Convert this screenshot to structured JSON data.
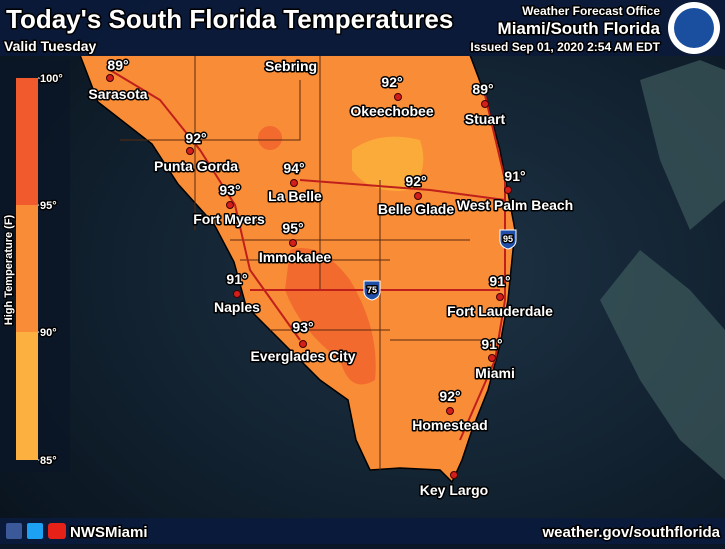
{
  "header": {
    "title": "Today's South Florida Temperatures",
    "valid": "Valid Tuesday",
    "office": "Weather Forecast Office",
    "region": "Miami/South Florida",
    "issued": "Issued Sep 01, 2020 2:54 AM EDT"
  },
  "legend": {
    "title": "High Temperature (F)",
    "ticks": [
      "100°",
      "95°",
      "90°",
      "85°"
    ]
  },
  "cities": [
    {
      "name": "Sarasota",
      "temp": "89°"
    },
    {
      "name": "Sebring"
    },
    {
      "name": "Okeechobee",
      "temp": "92°"
    },
    {
      "name": "Stuart",
      "temp": "89°"
    },
    {
      "name": "Punta Gorda",
      "temp": "92°"
    },
    {
      "name": "La Belle",
      "temp": "94°"
    },
    {
      "name": "Belle Glade",
      "temp": "92°"
    },
    {
      "name": "West Palm Beach",
      "temp": "91°"
    },
    {
      "name": "Fort Myers",
      "temp": "93°"
    },
    {
      "name": "Immokalee",
      "temp": "95°"
    },
    {
      "name": "Naples",
      "temp": "91°"
    },
    {
      "name": "Fort Lauderdale",
      "temp": "91°"
    },
    {
      "name": "Everglades City",
      "temp": "93°"
    },
    {
      "name": "Miami",
      "temp": "91°"
    },
    {
      "name": "Homestead",
      "temp": "92°"
    },
    {
      "name": "Key Largo"
    }
  ],
  "highways": [
    "95",
    "75"
  ],
  "footer": {
    "social": "NWSMiami",
    "url": "weather.gov/southflorida"
  }
}
